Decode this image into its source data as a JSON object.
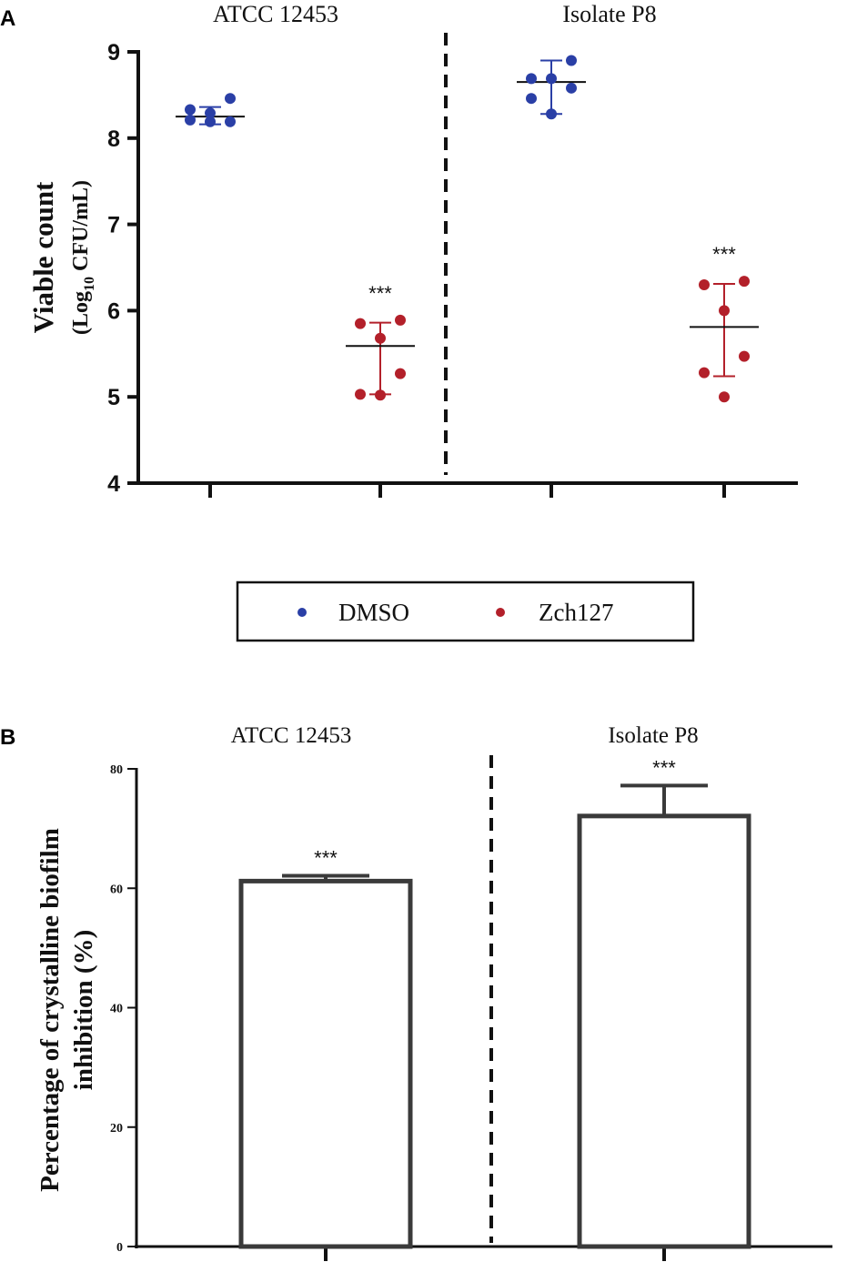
{
  "colors": {
    "dmso": "#2a3fa6",
    "zch127": "#b3202a",
    "axis": "#111111",
    "bar_edge": "#3a3a3a"
  },
  "chart_data": [
    {
      "panel": "A",
      "type": "scatter",
      "ylabel_main": "Viable count",
      "ylabel_sub_prefix": "(Log",
      "ylabel_sub_subscript": "10",
      "ylabel_sub_suffix": " CFU/mL)",
      "ylim": [
        4,
        9
      ],
      "yticks": [
        4,
        5,
        6,
        7,
        8,
        9
      ],
      "group_labels": [
        "ATCC 12453",
        "Isolate P8"
      ],
      "legend": [
        {
          "name": "DMSO",
          "color": "#2a3fa6"
        },
        {
          "name": "Zch127",
          "color": "#b3202a"
        }
      ],
      "series": [
        {
          "group": "ATCC 12453",
          "name": "DMSO",
          "mean": 8.25,
          "sd_low": 8.16,
          "sd_high": 8.36,
          "points": [
            8.46,
            8.33,
            8.29,
            8.19,
            8.21,
            8.19
          ],
          "significance": ""
        },
        {
          "group": "ATCC 12453",
          "name": "Zch127",
          "mean": 5.59,
          "sd_low": 5.03,
          "sd_high": 5.86,
          "points": [
            5.89,
            5.85,
            5.68,
            5.27,
            5.03,
            5.02
          ],
          "significance": "***"
        },
        {
          "group": "Isolate P8",
          "name": "DMSO",
          "mean": 8.65,
          "sd_low": 8.28,
          "sd_high": 8.9,
          "points": [
            8.9,
            8.69,
            8.69,
            8.58,
            8.46,
            8.28
          ],
          "significance": ""
        },
        {
          "group": "Isolate P8",
          "name": "Zch127",
          "mean": 5.81,
          "sd_low": 5.24,
          "sd_high": 6.31,
          "points": [
            6.34,
            6.3,
            6.0,
            5.47,
            5.28,
            5.0
          ],
          "significance": "***"
        }
      ]
    },
    {
      "panel": "B",
      "type": "bar",
      "ylabel_line1": "Percentage of crystalline biofilm",
      "ylabel_line2": "inhibition (%)",
      "ylim": [
        0,
        80
      ],
      "yticks": [
        0,
        20,
        40,
        60,
        80
      ],
      "categories": [
        "ATCC 12453",
        "Isolate P8"
      ],
      "values": [
        61.2,
        72.1
      ],
      "errors": [
        0.9,
        5.1
      ],
      "significance": [
        "***",
        "***"
      ]
    }
  ]
}
